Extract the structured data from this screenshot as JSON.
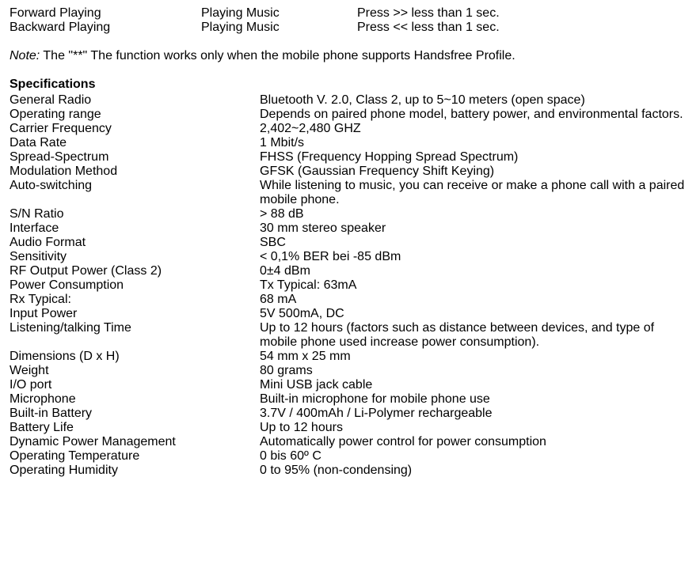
{
  "top_rows": [
    {
      "c1": "Forward Playing",
      "c2": "Playing Music",
      "c3": "Press >> less than 1 sec."
    },
    {
      "c1": "Backward Playing",
      "c2": "Playing Music",
      "c3": "Press << less than 1 sec."
    }
  ],
  "note": {
    "label": "Note:",
    "text": " The \"**\" The function works only when the mobile phone supports Handsfree Profile."
  },
  "spec_title": "Specifications",
  "specs": [
    {
      "label": "General Radio",
      "value": "Bluetooth V. 2.0, Class 2, up to 5~10 meters (open space)"
    },
    {
      "label": "Operating range",
      "value": "Depends on paired phone model, battery power, and environmental factors."
    },
    {
      "label": "Carrier Frequency",
      "value": "2,402~2,480 GHZ"
    },
    {
      "label": "Data Rate",
      "value": "1 Mbit/s"
    },
    {
      "label": "Spread-Spectrum",
      "value": "FHSS (Frequency Hopping Spread Spectrum)"
    },
    {
      "label": "Modulation Method",
      "value": "GFSK (Gaussian Frequency Shift Keying)"
    },
    {
      "label": "Auto-switching",
      "value": "While listening to music, you can receive or make a phone call with a paired mobile phone."
    },
    {
      "label": "S/N Ratio",
      "value": "> 88 dB"
    },
    {
      "label": "Interface",
      "value": "30 mm stereo speaker"
    },
    {
      "label": "Audio Format",
      "value": "SBC"
    },
    {
      "label": "Sensitivity",
      "value": "< 0,1% BER bei -85 dBm"
    },
    {
      "label": "RF Output Power (Class 2)",
      "value": "0±4 dBm"
    },
    {
      "label": "Power Consumption",
      "value": "Tx Typical: 63mA"
    },
    {
      "label": "Rx Typical:",
      "value": "68 mA"
    },
    {
      "label": "Input Power",
      "value": "5V 500mA, DC"
    },
    {
      "label": "Listening/talking Time",
      "value": "Up to 12 hours (factors such as distance between devices, and type of mobile phone used increase power consumption)."
    },
    {
      "label": "Dimensions (D x H)",
      "value": "54 mm x 25 mm"
    },
    {
      "label": "Weight",
      "value": "80 grams"
    },
    {
      "label": "I/O port",
      "value": "Mini USB jack cable"
    },
    {
      "label": "Microphone",
      "value": "Built-in microphone for mobile phone use"
    },
    {
      "label": "Built-in Battery",
      "value": "3.7V / 400mAh / Li-Polymer rechargeable"
    },
    {
      "label": "Battery Life",
      "value": "Up to 12 hours"
    },
    {
      "label": "Dynamic Power Management",
      "value": "Automatically power control for power consumption"
    },
    {
      "label": "Operating Temperature",
      "value": "0 bis 60º C"
    },
    {
      "label": "Operating Humidity",
      "value": "0 to 95% (non-condensing)"
    }
  ]
}
